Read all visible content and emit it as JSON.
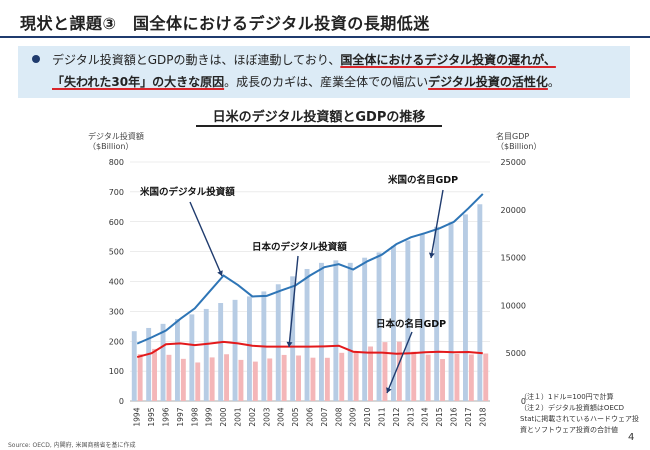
{
  "slide": {
    "title": "現状と課題③　国全体におけるデジタル投資の長期低迷",
    "summary": {
      "l1_a": "デジタル投資額とGDPの動きは、ほぼ連動しており、",
      "l1_b": "国全体におけるデジタル投資の遅れが、",
      "l2_a": "「失われた30年」の大きな原因",
      "l2_b": "。成長のカギは、産業全体での幅広い",
      "l2_c": "デジタル投資の活性化",
      "l2_d": "。"
    },
    "notes": [
      "（注１）1ドル=100円で計算",
      "（注２）デジタル投資額はOECD",
      "Statに掲載されているハードウェア投",
      "資とソフトウェア投資の合計値"
    ],
    "source": "Source: OECD, 内閣府, 米国商務省を基に作成",
    "page_number": "4"
  },
  "chart_data": {
    "type": "bar",
    "title": "日米のデジタル投資額とGDPの推移",
    "y_left_label_1": "デジタル投資額",
    "y_left_label_2": "（$Billion）",
    "y_right_label_1": "名目GDP",
    "y_right_label_2": "（$Billion）",
    "y_left_range": [
      0,
      800
    ],
    "y_left_ticks": [
      0,
      100,
      200,
      300,
      400,
      500,
      600,
      700,
      800
    ],
    "y_right_range": [
      0,
      25000
    ],
    "y_right_ticks": [
      0,
      5000,
      10000,
      15000,
      20000,
      25000
    ],
    "categories": [
      "1994",
      "1995",
      "1996",
      "1997",
      "1998",
      "1999",
      "2000",
      "2001",
      "2002",
      "2003",
      "2004",
      "2005",
      "2006",
      "2007",
      "2008",
      "2009",
      "2010",
      "2011",
      "2012",
      "2013",
      "2014",
      "2015",
      "2016",
      "2017",
      "2018"
    ],
    "series": [
      {
        "name": "米国の名目GDP",
        "kind": "bar",
        "axis": "right",
        "color": "#b7cce4",
        "values": [
          7300,
          7640,
          8070,
          8580,
          9060,
          9630,
          10250,
          10580,
          10940,
          11460,
          12210,
          13040,
          13810,
          14450,
          14710,
          14450,
          14990,
          15540,
          16200,
          16780,
          17520,
          18220,
          18710,
          19520,
          20580
        ]
      },
      {
        "name": "日本の名目GDP",
        "kind": "bar",
        "axis": "right",
        "color": "#f4b6b8",
        "values": [
          4900,
          5450,
          4830,
          4410,
          4030,
          4560,
          4890,
          4300,
          4120,
          4450,
          4820,
          4760,
          4530,
          4520,
          5040,
          5230,
          5700,
          6160,
          6200,
          5160,
          4850,
          4390,
          4920,
          4870,
          4970
        ]
      },
      {
        "name": "米国のデジタル投資額",
        "kind": "line",
        "axis": "left",
        "color": "#2e75b6",
        "values": [
          192,
          213,
          236,
          275,
          310,
          365,
          420,
          388,
          350,
          352,
          370,
          387,
          420,
          448,
          458,
          440,
          468,
          490,
          525,
          548,
          562,
          578,
          600,
          645,
          693
        ]
      },
      {
        "name": "日本のデジタル投資額",
        "kind": "line",
        "axis": "left",
        "color": "#e31a1c",
        "values": [
          147,
          160,
          190,
          193,
          187,
          192,
          198,
          193,
          185,
          182,
          182,
          182,
          182,
          183,
          185,
          165,
          162,
          162,
          158,
          160,
          163,
          165,
          163,
          164,
          160
        ]
      }
    ],
    "annotations": [
      "米国のデジタル投資額",
      "日本のデジタル投資額",
      "米国の名目GDP",
      "日本の名目GDP"
    ]
  }
}
